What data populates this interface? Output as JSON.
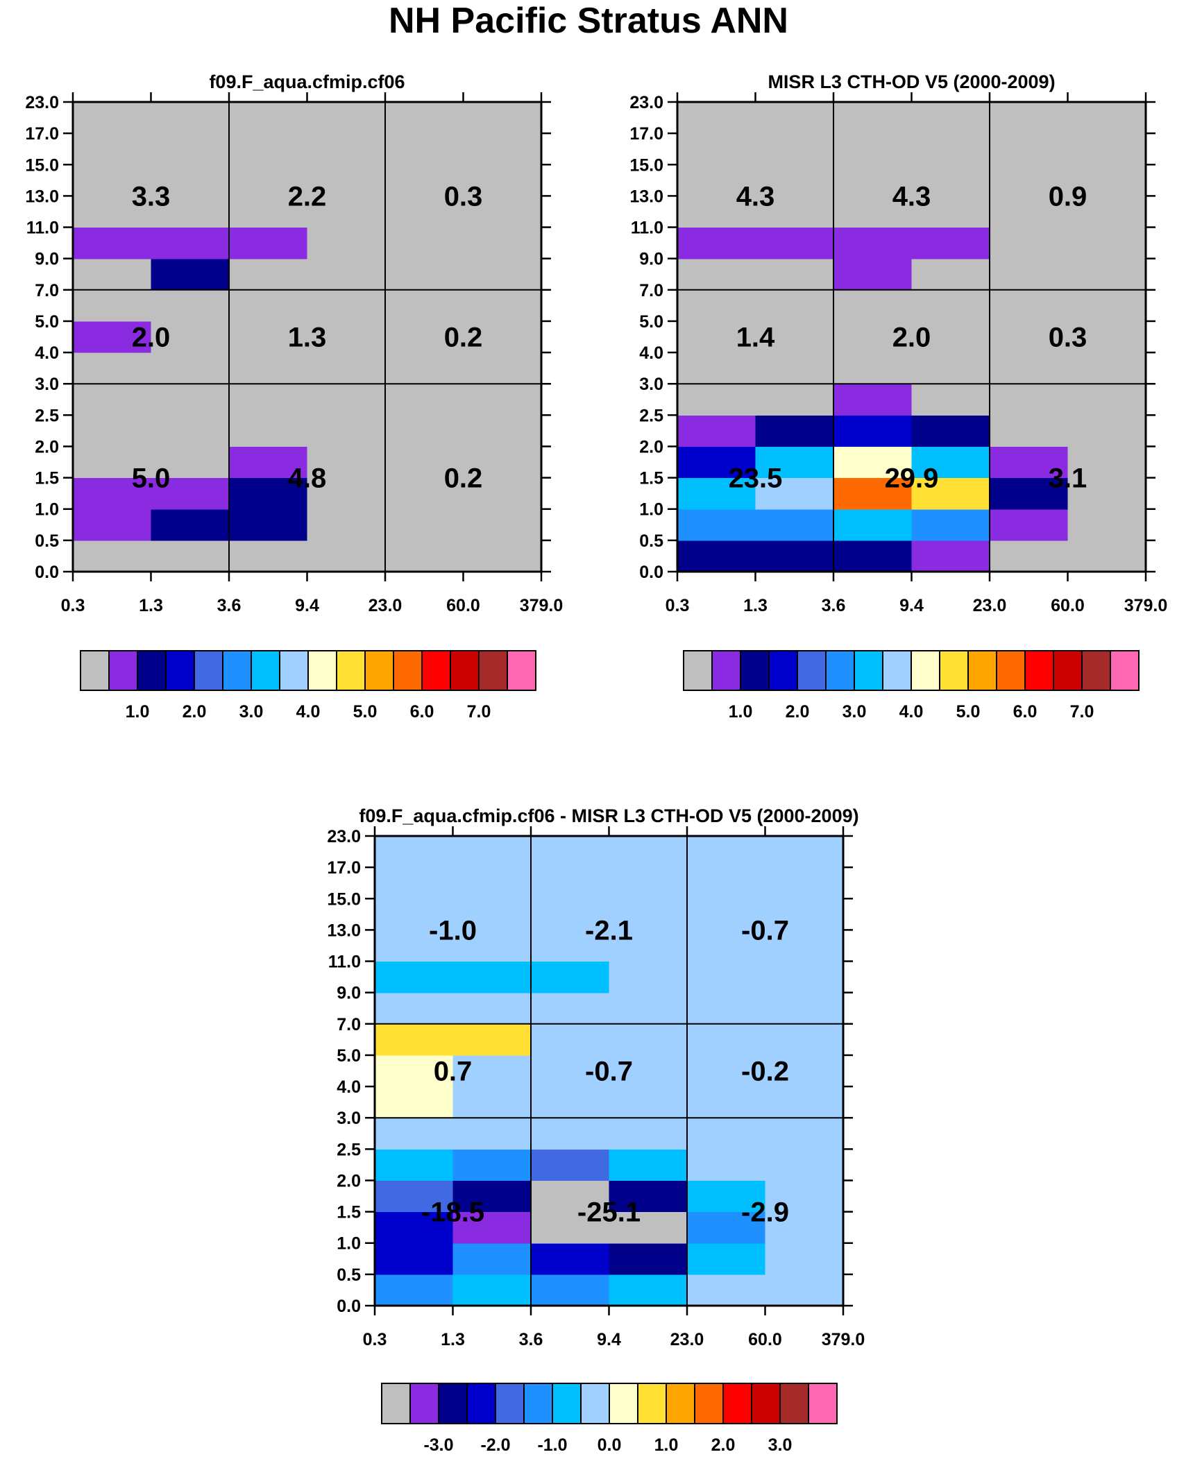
{
  "title": "NH Pacific Stratus ANN",
  "palette": {
    "colors": [
      "#bfbfbf",
      "#8a2be2",
      "#00008b",
      "#0000cd",
      "#4169e1",
      "#1e90ff",
      "#00bfff",
      "#a0d0ff",
      "#ffffcc",
      "#ffe033",
      "#ffa500",
      "#ff6a00",
      "#ff0000",
      "#cd0000",
      "#a52a2a",
      "#ff69b4"
    ]
  },
  "chart_data": [
    {
      "type": "heatmap",
      "title": "f09.F_aqua.cfmip.cf06",
      "x_ticks": [
        "0.3",
        "1.3",
        "3.6",
        "9.4",
        "23.0",
        "60.0",
        "379.0"
      ],
      "y_ticks": [
        "0.0",
        "0.5",
        "1.0",
        "1.5",
        "2.0",
        "2.5",
        "3.0",
        "4.0",
        "5.0",
        "7.0",
        "9.0",
        "11.0",
        "13.0",
        "15.0",
        "17.0",
        "23.0"
      ],
      "cells_color_index": [
        [
          0,
          0,
          0,
          0,
          0,
          0
        ],
        [
          1,
          2,
          2,
          0,
          0,
          0
        ],
        [
          1,
          1,
          2,
          0,
          0,
          0
        ],
        [
          0,
          0,
          1,
          0,
          0,
          0
        ],
        [
          0,
          0,
          0,
          0,
          0,
          0
        ],
        [
          0,
          0,
          0,
          0,
          0,
          0
        ],
        [
          0,
          0,
          0,
          0,
          0,
          0
        ],
        [
          1,
          0,
          0,
          0,
          0,
          0
        ],
        [
          0,
          0,
          0,
          0,
          0,
          0
        ],
        [
          0,
          2,
          0,
          0,
          0,
          0
        ],
        [
          1,
          1,
          1,
          0,
          0,
          0
        ],
        [
          0,
          0,
          0,
          0,
          0,
          0
        ],
        [
          0,
          0,
          0,
          0,
          0,
          0
        ],
        [
          0,
          0,
          0,
          0,
          0,
          0
        ],
        [
          0,
          0,
          0,
          0,
          0,
          0
        ]
      ],
      "block_labels": [
        [
          "5.0",
          "4.8",
          "0.2"
        ],
        [
          "2.0",
          "1.3",
          "0.2"
        ],
        [
          "3.3",
          "2.2",
          "0.3"
        ]
      ],
      "colorbar_labels": [
        "1.0",
        "2.0",
        "3.0",
        "4.0",
        "5.0",
        "6.0",
        "7.0"
      ]
    },
    {
      "type": "heatmap",
      "title": "MISR L3 CTH-OD V5 (2000-2009)",
      "x_ticks": [
        "0.3",
        "1.3",
        "3.6",
        "9.4",
        "23.0",
        "60.0",
        "379.0"
      ],
      "y_ticks": [
        "0.0",
        "0.5",
        "1.0",
        "1.5",
        "2.0",
        "2.5",
        "3.0",
        "4.0",
        "5.0",
        "7.0",
        "9.0",
        "11.0",
        "13.0",
        "15.0",
        "17.0",
        "23.0"
      ],
      "cells_color_index": [
        [
          2,
          2,
          2,
          1,
          0,
          0
        ],
        [
          5,
          5,
          6,
          5,
          1,
          0
        ],
        [
          6,
          7,
          11,
          9,
          2,
          0
        ],
        [
          3,
          6,
          8,
          6,
          1,
          0
        ],
        [
          1,
          2,
          3,
          2,
          0,
          0
        ],
        [
          0,
          0,
          1,
          0,
          0,
          0
        ],
        [
          0,
          0,
          0,
          0,
          0,
          0
        ],
        [
          0,
          0,
          0,
          0,
          0,
          0
        ],
        [
          0,
          0,
          0,
          0,
          0,
          0
        ],
        [
          0,
          0,
          1,
          0,
          0,
          0
        ],
        [
          1,
          1,
          1,
          1,
          0,
          0
        ],
        [
          0,
          0,
          0,
          0,
          0,
          0
        ],
        [
          0,
          0,
          0,
          0,
          0,
          0
        ],
        [
          0,
          0,
          0,
          0,
          0,
          0
        ],
        [
          0,
          0,
          0,
          0,
          0,
          0
        ]
      ],
      "block_labels": [
        [
          "23.5",
          "29.9",
          "3.1"
        ],
        [
          "1.4",
          "2.0",
          "0.3"
        ],
        [
          "4.3",
          "4.3",
          "0.9"
        ]
      ],
      "colorbar_labels": [
        "1.0",
        "2.0",
        "3.0",
        "4.0",
        "5.0",
        "6.0",
        "7.0"
      ]
    },
    {
      "type": "heatmap",
      "title": "f09.F_aqua.cfmip.cf06 - MISR L3 CTH-OD V5 (2000-2009)",
      "x_ticks": [
        "0.3",
        "1.3",
        "3.6",
        "9.4",
        "23.0",
        "60.0",
        "379.0"
      ],
      "y_ticks": [
        "0.0",
        "0.5",
        "1.0",
        "1.5",
        "2.0",
        "2.5",
        "3.0",
        "4.0",
        "5.0",
        "7.0",
        "9.0",
        "11.0",
        "13.0",
        "15.0",
        "17.0",
        "23.0"
      ],
      "cells_color_index": [
        [
          5,
          6,
          5,
          6,
          7,
          7
        ],
        [
          3,
          5,
          3,
          2,
          6,
          7
        ],
        [
          3,
          1,
          0,
          0,
          5,
          7
        ],
        [
          4,
          2,
          0,
          2,
          6,
          7
        ],
        [
          6,
          5,
          4,
          6,
          7,
          7
        ],
        [
          7,
          7,
          7,
          7,
          7,
          7
        ],
        [
          8,
          7,
          7,
          7,
          7,
          7
        ],
        [
          8,
          7,
          7,
          7,
          7,
          7
        ],
        [
          9,
          9,
          7,
          7,
          7,
          7
        ],
        [
          7,
          7,
          7,
          7,
          7,
          7
        ],
        [
          6,
          6,
          6,
          7,
          7,
          7
        ],
        [
          7,
          7,
          7,
          7,
          7,
          7
        ],
        [
          7,
          7,
          7,
          7,
          7,
          7
        ],
        [
          7,
          7,
          7,
          7,
          7,
          7
        ],
        [
          7,
          7,
          7,
          7,
          7,
          7
        ]
      ],
      "block_labels": [
        [
          "-18.5",
          "-25.1",
          "-2.9"
        ],
        [
          "0.7",
          "-0.7",
          "-0.2"
        ],
        [
          "-1.0",
          "-2.1",
          "-0.7"
        ]
      ],
      "colorbar_labels": [
        "-3.0",
        "-2.0",
        "-1.0",
        "0.0",
        "1.0",
        "2.0",
        "3.0"
      ]
    }
  ]
}
